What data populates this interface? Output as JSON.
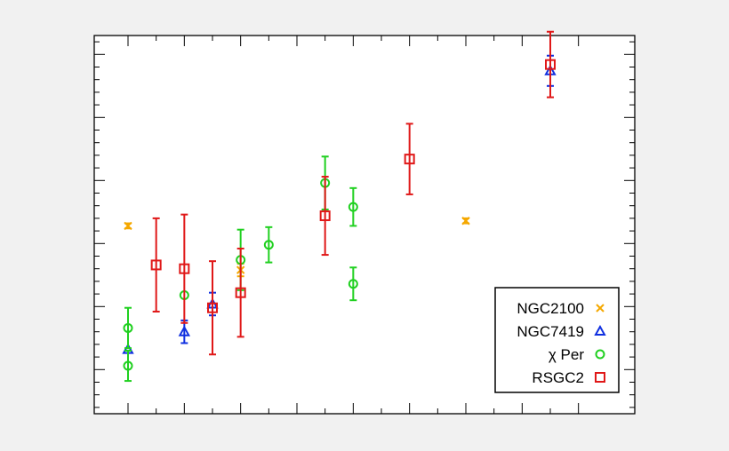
{
  "chart_data": {
    "type": "scatter",
    "title": "",
    "xlabel": "",
    "ylabel": "",
    "xlim": [
      -0.3,
      4.5
    ],
    "ylim": [
      -0.35,
      2.65
    ],
    "grid": false,
    "legend": {
      "position": "bottom-right"
    },
    "series": [
      {
        "name": "NGC2100",
        "marker": "x",
        "color": "#f5a800",
        "points": [
          {
            "x": 0.0,
            "y": 1.14,
            "err": 0.02
          },
          {
            "x": 1.0,
            "y": 0.79,
            "err": 0.05
          },
          {
            "x": 3.0,
            "y": 1.18,
            "err": 0.02
          }
        ]
      },
      {
        "name": "NGC7419",
        "marker": "triangle",
        "color": "#1030e0",
        "points": [
          {
            "x": 0.0,
            "y": 0.16,
            "err": 0.0
          },
          {
            "x": 0.5,
            "y": 0.3,
            "err": 0.09
          },
          {
            "x": 0.75,
            "y": 0.52,
            "err": 0.09
          },
          {
            "x": 3.75,
            "y": 2.37,
            "err": 0.12
          }
        ]
      },
      {
        "name": "χ Per",
        "marker": "circle",
        "color": "#20d020",
        "points": [
          {
            "x": 0.0,
            "y": 0.33,
            "err": 0.16
          },
          {
            "x": 0.0,
            "y": 0.03,
            "err": 0.12
          },
          {
            "x": 0.5,
            "y": 0.59,
            "err": 0.0
          },
          {
            "x": 1.0,
            "y": 0.87,
            "err": 0.24
          },
          {
            "x": 1.25,
            "y": 0.99,
            "err": 0.14
          },
          {
            "x": 1.75,
            "y": 1.48,
            "err": 0.21
          },
          {
            "x": 2.0,
            "y": 1.29,
            "err": 0.15
          },
          {
            "x": 2.0,
            "y": 0.68,
            "err": 0.13
          }
        ]
      },
      {
        "name": "RSGC2",
        "marker": "square",
        "color": "#e01818",
        "points": [
          {
            "x": 0.25,
            "y": 0.83,
            "err": 0.37
          },
          {
            "x": 0.5,
            "y": 0.8,
            "err": 0.43
          },
          {
            "x": 0.75,
            "y": 0.49,
            "err": 0.37
          },
          {
            "x": 1.0,
            "y": 0.61,
            "err": 0.35
          },
          {
            "x": 1.75,
            "y": 1.22,
            "err": 0.31
          },
          {
            "x": 2.5,
            "y": 1.67,
            "err": 0.28
          },
          {
            "x": 3.75,
            "y": 2.42,
            "err": 0.26
          }
        ]
      }
    ]
  }
}
